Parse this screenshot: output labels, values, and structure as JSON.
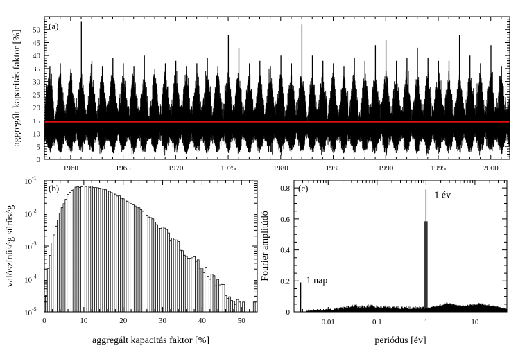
{
  "chart_data": [
    {
      "panel": "(a)",
      "type": "line",
      "ylabel": "aggregált kapacitás faktor  [%]",
      "xlabel": "",
      "xlim": [
        1957.5,
        2001.8
      ],
      "ylim": [
        0,
        55
      ],
      "x_ticks": [
        1960,
        1965,
        1970,
        1975,
        1980,
        1985,
        1990,
        1995,
        2000
      ],
      "y_ticks": [
        0,
        5,
        10,
        15,
        20,
        25,
        30,
        35,
        40,
        45,
        50
      ],
      "mean_line_value": 14.5,
      "mean_line_color": "#dd1111",
      "annual_winter_peaks": [
        {
          "year": 1958,
          "peak": 36
        },
        {
          "year": 1959,
          "peak": 37
        },
        {
          "year": 1960,
          "peak": 35
        },
        {
          "year": 1961,
          "peak": 53
        },
        {
          "year": 1962,
          "peak": 38
        },
        {
          "year": 1963,
          "peak": 36
        },
        {
          "year": 1964,
          "peak": 39
        },
        {
          "year": 1965,
          "peak": 37
        },
        {
          "year": 1966,
          "peak": 36
        },
        {
          "year": 1967,
          "peak": 40
        },
        {
          "year": 1968,
          "peak": 35
        },
        {
          "year": 1969,
          "peak": 37
        },
        {
          "year": 1970,
          "peak": 38
        },
        {
          "year": 1971,
          "peak": 36
        },
        {
          "year": 1972,
          "peak": 37
        },
        {
          "year": 1973,
          "peak": 39
        },
        {
          "year": 1974,
          "peak": 36
        },
        {
          "year": 1975,
          "peak": 48
        },
        {
          "year": 1976,
          "peak": 43
        },
        {
          "year": 1977,
          "peak": 37
        },
        {
          "year": 1978,
          "peak": 38
        },
        {
          "year": 1979,
          "peak": 36
        },
        {
          "year": 1980,
          "peak": 40
        },
        {
          "year": 1981,
          "peak": 37
        },
        {
          "year": 1982,
          "peak": 52
        },
        {
          "year": 1983,
          "peak": 40
        },
        {
          "year": 1984,
          "peak": 38
        },
        {
          "year": 1985,
          "peak": 37
        },
        {
          "year": 1986,
          "peak": 36
        },
        {
          "year": 1987,
          "peak": 39
        },
        {
          "year": 1988,
          "peak": 38
        },
        {
          "year": 1989,
          "peak": 44
        },
        {
          "year": 1990,
          "peak": 46
        },
        {
          "year": 1991,
          "peak": 38
        },
        {
          "year": 1992,
          "peak": 39
        },
        {
          "year": 1993,
          "peak": 43
        },
        {
          "year": 1994,
          "peak": 39
        },
        {
          "year": 1995,
          "peak": 38
        },
        {
          "year": 1996,
          "peak": 38
        },
        {
          "year": 1997,
          "peak": 48
        },
        {
          "year": 1998,
          "peak": 40
        },
        {
          "year": 1999,
          "peak": 37
        },
        {
          "year": 2000,
          "peak": 44
        },
        {
          "year": 2001,
          "peak": 36
        }
      ]
    },
    {
      "panel": "(b)",
      "type": "bar",
      "scale": "log",
      "ylabel": "valószínűség sűrűség",
      "xlabel": "aggregált kapacitás faktor  [%]",
      "xlim": [
        0,
        54
      ],
      "ylim_exponents": [
        -5,
        -1
      ],
      "y_tick_base": "10",
      "y_tick_exponents": [
        "-1",
        "-2",
        "-3",
        "-4",
        "-5"
      ],
      "x_ticks": [
        0,
        10,
        20,
        30,
        40,
        50
      ],
      "bin_width": 0.5,
      "log10_density_profile": [
        {
          "x": 0.5,
          "log10": -4.5
        },
        {
          "x": 1,
          "log10": -3.7
        },
        {
          "x": 1.5,
          "log10": -3.3
        },
        {
          "x": 2,
          "log10": -2.9
        },
        {
          "x": 3,
          "log10": -2.4
        },
        {
          "x": 4,
          "log10": -2.0
        },
        {
          "x": 5,
          "log10": -1.7
        },
        {
          "x": 6,
          "log10": -1.45
        },
        {
          "x": 7,
          "log10": -1.3
        },
        {
          "x": 8,
          "log10": -1.22
        },
        {
          "x": 9,
          "log10": -1.2
        },
        {
          "x": 10,
          "log10": -1.19
        },
        {
          "x": 12,
          "log10": -1.2
        },
        {
          "x": 14,
          "log10": -1.25
        },
        {
          "x": 16,
          "log10": -1.33
        },
        {
          "x": 18,
          "log10": -1.43
        },
        {
          "x": 20,
          "log10": -1.56
        },
        {
          "x": 22,
          "log10": -1.7
        },
        {
          "x": 24,
          "log10": -1.86
        },
        {
          "x": 26,
          "log10": -2.05
        },
        {
          "x": 28,
          "log10": -2.25
        },
        {
          "x": 30,
          "log10": -2.5
        },
        {
          "x": 32,
          "log10": -2.75
        },
        {
          "x": 34,
          "log10": -3.0
        },
        {
          "x": 36,
          "log10": -3.2
        },
        {
          "x": 38,
          "log10": -3.4
        },
        {
          "x": 40,
          "log10": -3.6
        },
        {
          "x": 42,
          "log10": -3.9
        },
        {
          "x": 44,
          "log10": -4.15
        },
        {
          "x": 45.5,
          "log10": -4.3
        },
        {
          "x": 47,
          "log10": -4.6
        },
        {
          "x": 49,
          "log10": -4.75
        }
      ],
      "isolated_bins": [
        {
          "x": 49.5,
          "log10": -4.7
        },
        {
          "x": 50.5,
          "log10": -4.7
        },
        {
          "x": 53.25,
          "log10": -4.7
        }
      ]
    },
    {
      "panel": "(c)",
      "type": "line",
      "scale": "log-x",
      "ylabel": "Fourier amplitúdó",
      "xlabel": "periódus  [év]",
      "xlim": [
        0.002,
        45
      ],
      "ylim": [
        0,
        0.85
      ],
      "x_ticks": [
        0.01,
        0.1,
        1,
        10
      ],
      "x_tick_labels": [
        "0.01",
        "0.1",
        "1",
        "10"
      ],
      "y_ticks": [
        0,
        0.2,
        0.4,
        0.6,
        0.8
      ],
      "y_tick_labels": [
        "0",
        "0.2",
        "0.4",
        "0.6",
        "0.8"
      ],
      "peaks": [
        {
          "label": "1 nap",
          "period": 0.00274,
          "amplitude": 0.19
        },
        {
          "label": "1 év",
          "period": 1.0,
          "amplitude": 0.79
        }
      ],
      "background_profile": [
        {
          "period": 0.004,
          "amplitude": 0.006
        },
        {
          "period": 0.01,
          "amplitude": 0.012
        },
        {
          "period": 0.03,
          "amplitude": 0.028
        },
        {
          "period": 0.05,
          "amplitude": 0.03
        },
        {
          "period": 0.1,
          "amplitude": 0.025
        },
        {
          "period": 0.3,
          "amplitude": 0.022
        },
        {
          "period": 0.9,
          "amplitude": 0.02
        },
        {
          "period": 1.5,
          "amplitude": 0.03
        },
        {
          "period": 2.7,
          "amplitude": 0.05
        },
        {
          "period": 5,
          "amplitude": 0.035
        },
        {
          "period": 12,
          "amplitude": 0.045
        },
        {
          "period": 45,
          "amplitude": 0.015
        }
      ]
    }
  ]
}
